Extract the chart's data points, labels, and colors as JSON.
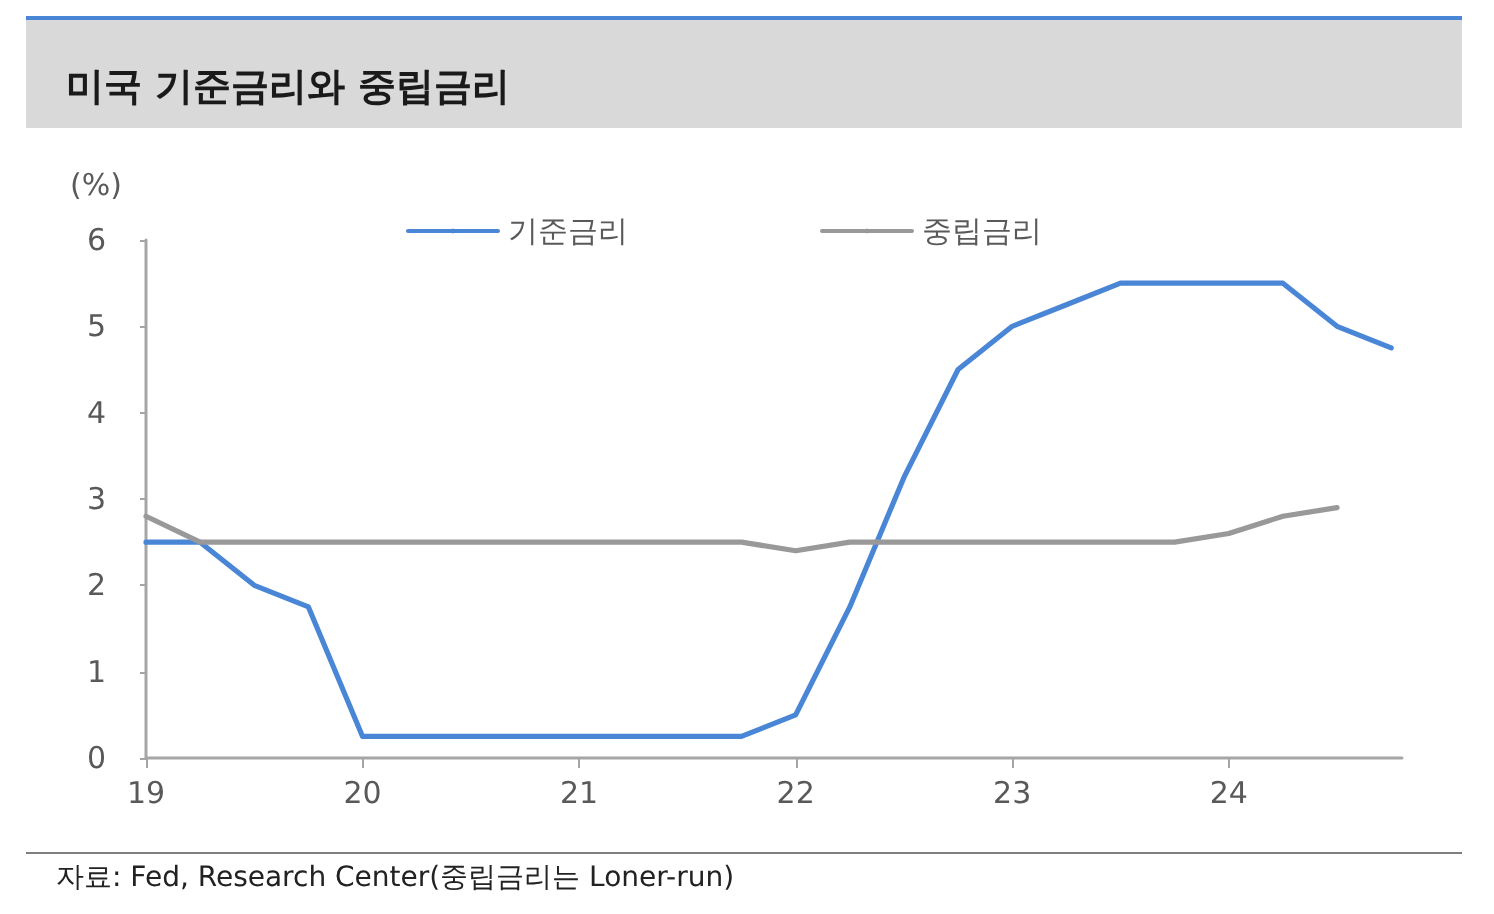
{
  "chart_data": {
    "type": "line",
    "title": "미국 기준금리와 중립금리",
    "ylabel": "(%)",
    "annotations": [
      "자료: Fed, Research Center(중립금리는 Loner-run)"
    ],
    "series": [
      {
        "name": "기준금리",
        "color": "#4a86d6",
        "x": [
          19,
          19.25,
          19.5,
          19.75,
          20,
          20.25,
          20.5,
          20.75,
          21,
          21.25,
          21.5,
          21.75,
          22,
          22.25,
          22.5,
          22.75,
          23,
          23.25,
          23.5,
          23.75,
          24,
          24.25,
          24.5,
          24.75
        ],
        "values": [
          2.5,
          2.5,
          2.0,
          1.75,
          0.25,
          0.25,
          0.25,
          0.25,
          0.25,
          0.25,
          0.25,
          0.25,
          0.5,
          1.75,
          3.25,
          4.5,
          5.0,
          5.25,
          5.5,
          5.5,
          5.5,
          5.5,
          5.0,
          4.75
        ]
      },
      {
        "name": "중립금리",
        "color": "#999999",
        "x": [
          19,
          19.25,
          19.5,
          19.75,
          20,
          20.25,
          20.5,
          20.75,
          21,
          21.25,
          21.5,
          21.75,
          22,
          22.25,
          22.5,
          22.75,
          23,
          23.25,
          23.5,
          23.75,
          24,
          24.25,
          24.5
        ],
        "values": [
          2.8,
          2.5,
          2.5,
          2.5,
          2.5,
          2.5,
          2.5,
          2.5,
          2.5,
          2.5,
          2.5,
          2.5,
          2.4,
          2.5,
          2.5,
          2.5,
          2.5,
          2.5,
          2.5,
          2.5,
          2.6,
          2.8,
          2.9
        ]
      }
    ],
    "xlim": [
      19,
      24.8
    ],
    "xticks": [
      19,
      20,
      21,
      22,
      23,
      24
    ],
    "ylim": [
      0,
      6
    ],
    "yticks": [
      0,
      1,
      2,
      3,
      4,
      5,
      6
    ],
    "grid": false,
    "legend": "top",
    "marker": "none",
    "line_style": "solid"
  }
}
